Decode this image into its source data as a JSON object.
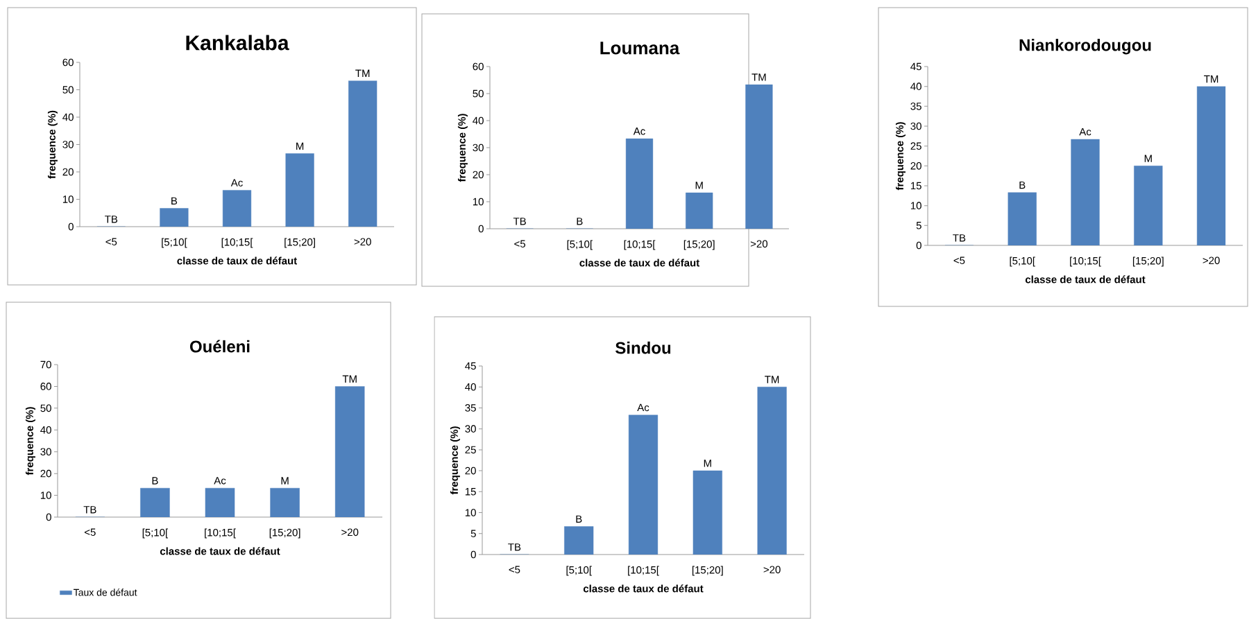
{
  "chart_data": [
    {
      "type": "bar",
      "title": "Kankalaba",
      "xlabel": "classe de taux de défaut",
      "ylabel": "frequence (%)",
      "categories": [
        "<5",
        "[5;10[",
        "[10;15[",
        "[15;20]",
        ">20"
      ],
      "ylim": [
        0,
        60
      ],
      "yticks": [
        0,
        10,
        20,
        30,
        40,
        50,
        60
      ],
      "series": [
        {
          "color": "#4f81bd",
          "values": [
            0,
            6.7,
            13.3,
            26.7,
            53.3
          ],
          "value_labels": [
            "TB",
            "B",
            "Ac",
            "M",
            "TM"
          ]
        }
      ]
    },
    {
      "type": "bar",
      "title": "Loumana",
      "xlabel": "classe de taux de défaut",
      "ylabel": "frequence (%)",
      "categories": [
        "<5",
        "[5;10[",
        "[10;15[",
        "[15;20]",
        ">20"
      ],
      "ylim": [
        0,
        60
      ],
      "yticks": [
        0,
        10,
        20,
        30,
        40,
        50,
        60
      ],
      "series": [
        {
          "color": "#4f81bd",
          "values": [
            0,
            0,
            33.3,
            13.3,
            53.3
          ],
          "value_labels": [
            "TB",
            "B",
            "Ac",
            "M",
            "TM"
          ]
        }
      ]
    },
    {
      "type": "bar",
      "title": "Niankorodougou",
      "xlabel": "classe de taux de défaut",
      "ylabel": "frequence (%)",
      "categories": [
        "<5",
        "[5;10[",
        "[10;15[",
        "[15;20]",
        ">20"
      ],
      "ylim": [
        0,
        45
      ],
      "yticks": [
        0,
        5,
        10,
        15,
        20,
        25,
        30,
        35,
        40,
        45
      ],
      "series": [
        {
          "color": "#4f81bd",
          "values": [
            0,
            13.3,
            26.7,
            20,
            40
          ],
          "value_labels": [
            "TB",
            "B",
            "Ac",
            "M",
            "TM"
          ]
        }
      ]
    },
    {
      "type": "bar",
      "title": "Ouéleni",
      "xlabel": "classe de taux de défaut",
      "ylabel": "frequence (%)",
      "categories": [
        "<5",
        "[5;10[",
        "[10;15[",
        "[15;20]",
        ">20"
      ],
      "ylim": [
        0,
        70
      ],
      "yticks": [
        0,
        10,
        20,
        30,
        40,
        50,
        60,
        70
      ],
      "legend": "bottom",
      "series": [
        {
          "name": "Taux de défaut",
          "color": "#4f81bd",
          "values": [
            0,
            13.3,
            13.3,
            13.3,
            60
          ],
          "value_labels": [
            "TB",
            "B",
            "Ac",
            "M",
            "TM"
          ]
        }
      ]
    },
    {
      "type": "bar",
      "title": "Sindou",
      "xlabel": "classe de taux de défaut",
      "ylabel": "frequence (%)",
      "categories": [
        "<5",
        "[5;10[",
        "[10;15[",
        "[15;20]",
        ">20"
      ],
      "ylim": [
        0,
        45
      ],
      "yticks": [
        0,
        5,
        10,
        15,
        20,
        25,
        30,
        35,
        40,
        45
      ],
      "series": [
        {
          "color": "#4f81bd",
          "values": [
            0,
            6.7,
            33.3,
            20,
            40
          ],
          "value_labels": [
            "TB",
            "B",
            "Ac",
            "M",
            "TM"
          ]
        }
      ]
    }
  ]
}
